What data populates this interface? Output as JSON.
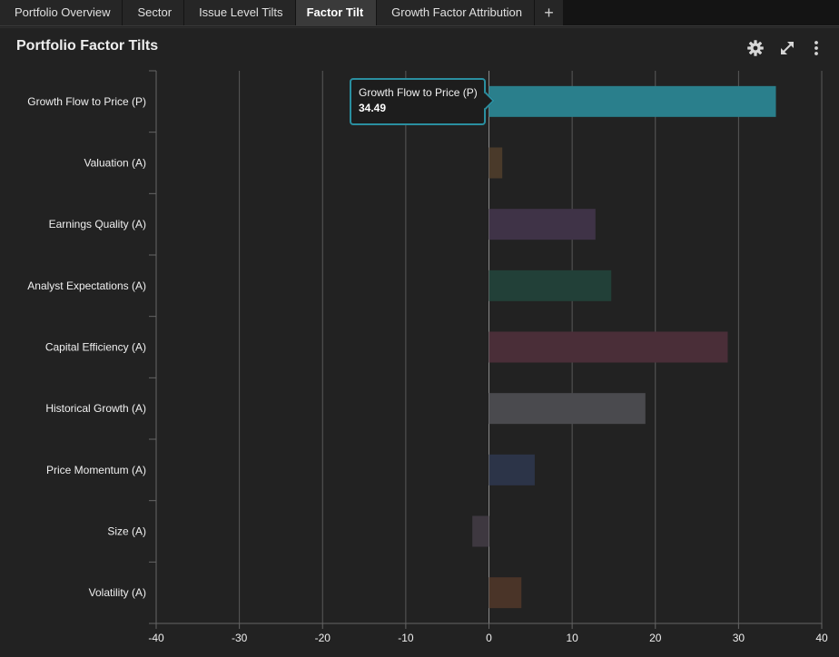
{
  "tabs": [
    {
      "label": "Portfolio Overview",
      "active": false
    },
    {
      "label": "Sector",
      "active": false
    },
    {
      "label": "Issue Level Tilts",
      "active": false
    },
    {
      "label": "Factor Tilt",
      "active": true
    },
    {
      "label": "Growth Factor Attribution",
      "active": false
    }
  ],
  "add_tab_label": "+",
  "panel": {
    "title": "Portfolio Factor Tilts",
    "icons": [
      "gear-icon",
      "expand-icon",
      "more-vertical-icon"
    ]
  },
  "tooltip": {
    "name": "Growth Flow to Price (P)",
    "value": "34.49"
  },
  "chart_data": {
    "type": "bar",
    "orientation": "horizontal",
    "categories": [
      "Growth Flow to Price (P)",
      "Valuation (A)",
      "Earnings Quality (A)",
      "Analyst Expectations (A)",
      "Capital Efficiency (A)",
      "Historical Growth (A)",
      "Price Momentum (A)",
      "Size (A)",
      "Volatility (A)"
    ],
    "values": [
      34.49,
      1.6,
      12.8,
      14.7,
      28.7,
      18.8,
      5.5,
      -2.0,
      3.9
    ],
    "colors": [
      "#2a7f8c",
      "#4a3a2a",
      "#3f3347",
      "#224038",
      "#4a2e38",
      "#4a4a4e",
      "#2c3448",
      "#3e3840",
      "#4a3428"
    ],
    "xlim": [
      -40,
      40
    ],
    "xticks": [
      -40,
      -30,
      -20,
      -10,
      0,
      10,
      20,
      30,
      40
    ],
    "grid": true,
    "legend": "none"
  }
}
